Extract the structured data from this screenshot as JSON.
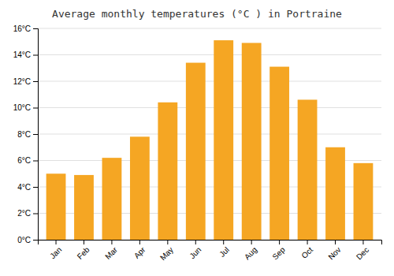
{
  "chart_data": {
    "type": "bar",
    "title": "Average monthly temperatures (°C ) in Portraine",
    "categories": [
      "Jan",
      "Feb",
      "Mar",
      "Apr",
      "May",
      "Jun",
      "Jul",
      "Aug",
      "Sep",
      "Oct",
      "Nov",
      "Dec"
    ],
    "values": [
      5.0,
      4.9,
      6.2,
      7.8,
      10.4,
      13.4,
      15.1,
      14.9,
      13.1,
      10.6,
      7.0,
      5.8
    ],
    "color": "#F5A623",
    "ylim": [
      0,
      16
    ],
    "yticks": [
      {
        "value": 0,
        "label": "0°C"
      },
      {
        "value": 2,
        "label": "2°C"
      },
      {
        "value": 4,
        "label": "4°C"
      },
      {
        "value": 6,
        "label": "6°C"
      },
      {
        "value": 8,
        "label": "8°C"
      },
      {
        "value": 10,
        "label": "10°C"
      },
      {
        "value": 12,
        "label": "12°C"
      },
      {
        "value": 14,
        "label": "14°C"
      },
      {
        "value": 16,
        "label": "16°C"
      }
    ],
    "grid": true
  }
}
